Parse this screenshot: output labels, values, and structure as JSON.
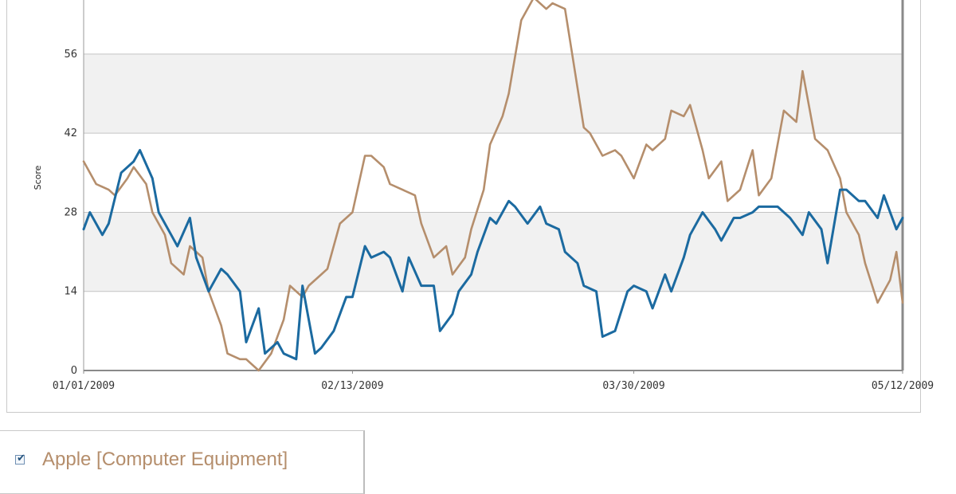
{
  "chart_data": {
    "type": "line",
    "ylabel": "Score",
    "ylim": [
      0,
      66
    ],
    "yticks": [
      0,
      14,
      28,
      42,
      56
    ],
    "x_tick_labels": [
      "01/01/2009",
      "02/13/2009",
      "03/30/2009",
      "05/12/2009"
    ],
    "x_range": [
      "2009-01-01",
      "2009-05-12"
    ],
    "grid": true,
    "series": [
      {
        "name": "Apple [Computer Equipment]",
        "color": "#b58e6c",
        "x": [
          "2009-01-01",
          "2009-01-03",
          "2009-01-05",
          "2009-01-06",
          "2009-01-08",
          "2009-01-09",
          "2009-01-11",
          "2009-01-12",
          "2009-01-14",
          "2009-01-15",
          "2009-01-17",
          "2009-01-18",
          "2009-01-20",
          "2009-01-21",
          "2009-01-23",
          "2009-01-24",
          "2009-01-26",
          "2009-01-27",
          "2009-01-29",
          "2009-01-31",
          "2009-02-02",
          "2009-02-03",
          "2009-02-05",
          "2009-02-06",
          "2009-02-08",
          "2009-02-09",
          "2009-02-11",
          "2009-02-13",
          "2009-02-15",
          "2009-02-16",
          "2009-02-18",
          "2009-02-19",
          "2009-02-21",
          "2009-02-23",
          "2009-02-24",
          "2009-02-26",
          "2009-02-28",
          "2009-03-01",
          "2009-03-03",
          "2009-03-04",
          "2009-03-06",
          "2009-03-07",
          "2009-03-09",
          "2009-03-10",
          "2009-03-12",
          "2009-03-14",
          "2009-03-16",
          "2009-03-17",
          "2009-03-19",
          "2009-03-20",
          "2009-03-22",
          "2009-03-23",
          "2009-03-25",
          "2009-03-27",
          "2009-03-28",
          "2009-03-30",
          "2009-04-01",
          "2009-04-02",
          "2009-04-04",
          "2009-04-05",
          "2009-04-07",
          "2009-04-08",
          "2009-04-10",
          "2009-04-11",
          "2009-04-13",
          "2009-04-14",
          "2009-04-16",
          "2009-04-18",
          "2009-04-19",
          "2009-04-21",
          "2009-04-23",
          "2009-04-25",
          "2009-04-26",
          "2009-04-28",
          "2009-04-30",
          "2009-05-02",
          "2009-05-03",
          "2009-05-05",
          "2009-05-06",
          "2009-05-08",
          "2009-05-10",
          "2009-05-11",
          "2009-05-12"
        ],
        "values": [
          37,
          33,
          32,
          31,
          34,
          36,
          33,
          28,
          24,
          19,
          17,
          22,
          20,
          14,
          8,
          3,
          2,
          2,
          0,
          3,
          9,
          15,
          13,
          15,
          17,
          18,
          26,
          28,
          38,
          38,
          36,
          33,
          32,
          31,
          26,
          20,
          22,
          17,
          20,
          25,
          32,
          40,
          45,
          49,
          62,
          66,
          64,
          65,
          64,
          57,
          43,
          42,
          38,
          39,
          38,
          34,
          40,
          39,
          41,
          46,
          45,
          47,
          39,
          34,
          37,
          30,
          32,
          39,
          31,
          34,
          46,
          44,
          53,
          41,
          39,
          34,
          28,
          24,
          19,
          12,
          16,
          21,
          12
        ]
      },
      {
        "name": "",
        "color": "#1b6aa0",
        "x": [
          "2009-01-01",
          "2009-01-02",
          "2009-01-04",
          "2009-01-05",
          "2009-01-07",
          "2009-01-09",
          "2009-01-10",
          "2009-01-12",
          "2009-01-13",
          "2009-01-15",
          "2009-01-16",
          "2009-01-18",
          "2009-01-19",
          "2009-01-21",
          "2009-01-23",
          "2009-01-24",
          "2009-01-26",
          "2009-01-27",
          "2009-01-29",
          "2009-01-30",
          "2009-02-01",
          "2009-02-02",
          "2009-02-04",
          "2009-02-05",
          "2009-02-07",
          "2009-02-08",
          "2009-02-10",
          "2009-02-12",
          "2009-02-13",
          "2009-02-15",
          "2009-02-16",
          "2009-02-18",
          "2009-02-19",
          "2009-02-21",
          "2009-02-22",
          "2009-02-24",
          "2009-02-26",
          "2009-02-27",
          "2009-03-01",
          "2009-03-02",
          "2009-03-04",
          "2009-03-05",
          "2009-03-07",
          "2009-03-08",
          "2009-03-10",
          "2009-03-11",
          "2009-03-13",
          "2009-03-15",
          "2009-03-16",
          "2009-03-18",
          "2009-03-19",
          "2009-03-21",
          "2009-03-22",
          "2009-03-24",
          "2009-03-25",
          "2009-03-27",
          "2009-03-29",
          "2009-03-30",
          "2009-04-01",
          "2009-04-02",
          "2009-04-04",
          "2009-04-05",
          "2009-04-07",
          "2009-04-08",
          "2009-04-10",
          "2009-04-12",
          "2009-04-13",
          "2009-04-15",
          "2009-04-16",
          "2009-04-18",
          "2009-04-19",
          "2009-04-21",
          "2009-04-22",
          "2009-04-24",
          "2009-04-26",
          "2009-04-27",
          "2009-04-29",
          "2009-04-30",
          "2009-05-02",
          "2009-05-03",
          "2009-05-05",
          "2009-05-06",
          "2009-05-08",
          "2009-05-09",
          "2009-05-11",
          "2009-05-12"
        ],
        "values": [
          25,
          28,
          24,
          26,
          35,
          37,
          39,
          34,
          28,
          24,
          22,
          27,
          20,
          14,
          18,
          17,
          14,
          5,
          11,
          3,
          5,
          3,
          2,
          15,
          3,
          4,
          7,
          13,
          13,
          22,
          20,
          21,
          20,
          14,
          20,
          15,
          15,
          7,
          10,
          14,
          17,
          21,
          27,
          26,
          30,
          29,
          26,
          29,
          26,
          25,
          21,
          19,
          15,
          14,
          6,
          7,
          14,
          15,
          14,
          11,
          17,
          14,
          20,
          24,
          28,
          25,
          23,
          27,
          27,
          28,
          29,
          29,
          29,
          27,
          24,
          28,
          25,
          19,
          32,
          32,
          30,
          30,
          27,
          31,
          25,
          27
        ]
      }
    ]
  },
  "legend": {
    "items": [
      {
        "label": "Apple [Computer Equipment]",
        "color": "#b58e6c",
        "checked": true
      }
    ]
  }
}
